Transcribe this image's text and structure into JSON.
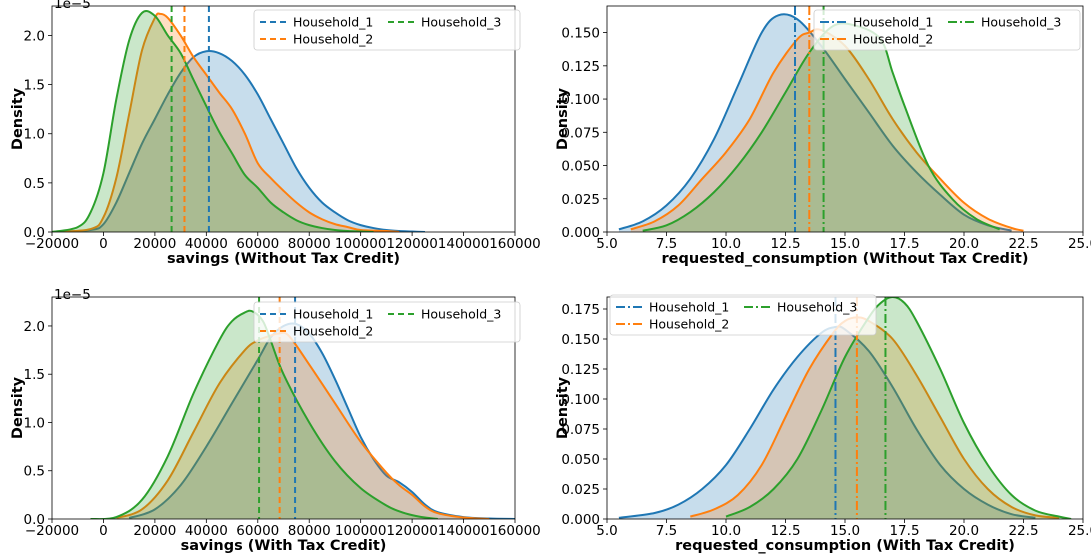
{
  "colors": {
    "Household_1": "#1f77b4",
    "Household_2": "#ff7f0e",
    "Household_3": "#2ca02c"
  },
  "chart_data": [
    {
      "type": "area",
      "xlabel": "savings (Without Tax Credit)",
      "ylabel": "Density",
      "y_offset_text": "1e−5",
      "xlim": [
        -20000,
        160000
      ],
      "ylim": [
        0,
        2.3
      ],
      "xticks": [
        -20000,
        0,
        20000,
        40000,
        60000,
        80000,
        100000,
        120000,
        140000,
        160000
      ],
      "xtick_labels": [
        "−20000",
        "0",
        "20000",
        "40000",
        "60000",
        "80000",
        "100000",
        "120000",
        "140000",
        "160000"
      ],
      "yticks": [
        0,
        0.5,
        1.0,
        1.5,
        2.0
      ],
      "ytick_labels": [
        "0.0",
        "0.5",
        "1.0",
        "1.5",
        "2.0"
      ],
      "legend": {
        "style": "dashed",
        "placement": "top-right",
        "ncol": 2
      },
      "series": [
        {
          "name": "Household_1",
          "mean": 41000,
          "x": [
            -20000,
            -5000,
            0,
            5000,
            10000,
            15000,
            20000,
            25000,
            30000,
            35000,
            40000,
            45000,
            50000,
            55000,
            60000,
            65000,
            70000,
            75000,
            80000,
            85000,
            90000,
            95000,
            100000,
            105000,
            110000,
            115000,
            120000,
            125000
          ],
          "y": [
            0,
            0.02,
            0.08,
            0.3,
            0.6,
            0.9,
            1.15,
            1.4,
            1.62,
            1.78,
            1.84,
            1.82,
            1.74,
            1.6,
            1.4,
            1.15,
            0.9,
            0.65,
            0.45,
            0.3,
            0.2,
            0.12,
            0.07,
            0.04,
            0.02,
            0.01,
            0.005,
            0
          ]
        },
        {
          "name": "Household_2",
          "mean": 31500,
          "x": [
            -20000,
            -5000,
            0,
            5000,
            10000,
            15000,
            20000,
            22000,
            25000,
            30000,
            35000,
            40000,
            45000,
            50000,
            55000,
            60000,
            65000,
            70000,
            75000,
            80000,
            85000,
            90000,
            95000,
            100000,
            110000,
            115000
          ],
          "y": [
            0,
            0.03,
            0.15,
            0.55,
            1.2,
            1.85,
            2.18,
            2.22,
            2.18,
            2.0,
            1.78,
            1.6,
            1.42,
            1.25,
            1.0,
            0.7,
            0.55,
            0.42,
            0.3,
            0.2,
            0.13,
            0.08,
            0.05,
            0.02,
            0.01,
            0
          ]
        },
        {
          "name": "Household_3",
          "mean": 26500,
          "x": [
            -20000,
            -10000,
            -5000,
            0,
            5000,
            10000,
            15000,
            20000,
            25000,
            30000,
            35000,
            40000,
            45000,
            50000,
            55000,
            60000,
            65000,
            70000,
            75000,
            80000,
            85000,
            90000,
            95000,
            100000,
            105000
          ],
          "y": [
            0,
            0.05,
            0.2,
            0.6,
            1.35,
            1.95,
            2.23,
            2.2,
            2.0,
            1.82,
            1.55,
            1.28,
            1.02,
            0.8,
            0.58,
            0.45,
            0.3,
            0.2,
            0.12,
            0.07,
            0.04,
            0.02,
            0.01,
            0.005,
            0
          ]
        }
      ]
    },
    {
      "type": "area",
      "xlabel": "requested_consumption (Without Tax Credit)",
      "ylabel": "Density",
      "xlim": [
        5.0,
        25.0
      ],
      "ylim": [
        0,
        0.17
      ],
      "xticks": [
        5,
        7.5,
        10,
        12.5,
        15,
        17.5,
        20,
        22.5,
        25
      ],
      "xtick_labels": [
        "5.0",
        "7.5",
        "10.0",
        "12.5",
        "15.0",
        "17.5",
        "20.0",
        "22.5",
        "25.0"
      ],
      "yticks": [
        0,
        0.025,
        0.05,
        0.075,
        0.1,
        0.125,
        0.15
      ],
      "ytick_labels": [
        "0.000",
        "0.025",
        "0.050",
        "0.075",
        "0.100",
        "0.125",
        "0.150"
      ],
      "legend": {
        "style": "dashdot",
        "placement": "top-right",
        "ncol": 2
      },
      "series": [
        {
          "name": "Household_1",
          "mean": 12.9,
          "x": [
            5.5,
            6.5,
            7.5,
            8.5,
            9.5,
            10.5,
            11.5,
            12.2,
            13.0,
            14.0,
            15.0,
            16.0,
            17.0,
            18.0,
            19.0,
            20.0,
            21.0,
            22.0
          ],
          "y": [
            0.002,
            0.008,
            0.02,
            0.04,
            0.07,
            0.11,
            0.15,
            0.163,
            0.16,
            0.14,
            0.115,
            0.09,
            0.065,
            0.045,
            0.028,
            0.013,
            0.005,
            0.001
          ]
        },
        {
          "name": "Household_2",
          "mean": 13.5,
          "x": [
            6.0,
            7.0,
            8.0,
            9.0,
            10.0,
            11.0,
            12.0,
            13.0,
            13.5,
            14.0,
            15.0,
            16.0,
            17.0,
            18.0,
            19.0,
            20.0,
            21.0,
            22.0,
            22.5
          ],
          "y": [
            0.002,
            0.008,
            0.02,
            0.04,
            0.06,
            0.085,
            0.12,
            0.145,
            0.15,
            0.152,
            0.14,
            0.115,
            0.085,
            0.06,
            0.04,
            0.022,
            0.01,
            0.003,
            0.001
          ]
        },
        {
          "name": "Household_3",
          "mean": 14.1,
          "x": [
            6.5,
            7.5,
            8.5,
            9.5,
            10.5,
            11.5,
            12.5,
            13.5,
            14.5,
            15.5,
            16.5,
            17.0,
            17.5,
            18.5,
            19.5,
            20.5,
            21.5
          ],
          "y": [
            0.001,
            0.005,
            0.015,
            0.03,
            0.05,
            0.075,
            0.105,
            0.135,
            0.155,
            0.155,
            0.145,
            0.12,
            0.095,
            0.05,
            0.025,
            0.01,
            0.002
          ]
        }
      ]
    },
    {
      "type": "area",
      "xlabel": "savings (With Tax Credit)",
      "ylabel": "Density",
      "y_offset_text": "1e−5",
      "xlim": [
        -20000,
        160000
      ],
      "ylim": [
        0,
        2.3
      ],
      "xticks": [
        -20000,
        0,
        20000,
        40000,
        60000,
        80000,
        100000,
        120000,
        140000,
        160000
      ],
      "xtick_labels": [
        "−20000",
        "0",
        "20000",
        "40000",
        "60000",
        "80000",
        "100000",
        "120000",
        "140000",
        "160000"
      ],
      "yticks": [
        0,
        0.5,
        1.0,
        1.5,
        2.0
      ],
      "ytick_labels": [
        "0.0",
        "0.5",
        "1.0",
        "1.5",
        "2.0"
      ],
      "legend": {
        "style": "dashed",
        "placement": "top-right",
        "ncol": 2
      },
      "series": [
        {
          "name": "Household_1",
          "mean": 74500,
          "x": [
            10000,
            20000,
            30000,
            40000,
            50000,
            60000,
            65000,
            70000,
            75000,
            80000,
            85000,
            90000,
            95000,
            100000,
            105000,
            110000,
            115000,
            120000,
            125000,
            130000,
            140000,
            150000,
            160000
          ],
          "y": [
            0.01,
            0.1,
            0.35,
            0.75,
            1.2,
            1.65,
            1.88,
            2.0,
            2.02,
            1.92,
            1.72,
            1.45,
            1.15,
            0.85,
            0.62,
            0.45,
            0.38,
            0.28,
            0.15,
            0.07,
            0.02,
            0.005,
            0
          ]
        },
        {
          "name": "Household_2",
          "mean": 68500,
          "x": [
            5000,
            15000,
            25000,
            35000,
            45000,
            55000,
            60000,
            65000,
            68000,
            72000,
            80000,
            90000,
            100000,
            110000,
            115000,
            120000,
            125000,
            130000,
            140000,
            150000
          ],
          "y": [
            0.01,
            0.1,
            0.4,
            0.9,
            1.4,
            1.75,
            1.85,
            1.9,
            1.92,
            1.9,
            1.6,
            1.2,
            0.8,
            0.48,
            0.35,
            0.25,
            0.13,
            0.06,
            0.015,
            0
          ]
        },
        {
          "name": "Household_3",
          "mean": 60500,
          "x": [
            -5000,
            5000,
            15000,
            25000,
            35000,
            45000,
            50000,
            55000,
            58000,
            62000,
            65000,
            70000,
            80000,
            90000,
            100000,
            110000,
            115000,
            120000,
            125000,
            130000
          ],
          "y": [
            0,
            0.02,
            0.2,
            0.65,
            1.3,
            1.85,
            2.05,
            2.14,
            2.15,
            2.05,
            1.85,
            1.5,
            1.0,
            0.6,
            0.32,
            0.14,
            0.08,
            0.04,
            0.015,
            0
          ]
        }
      ]
    },
    {
      "type": "area",
      "xlabel": "requested_consumption (With Tax Credit)",
      "ylabel": "Density",
      "xlim": [
        5.0,
        25.0
      ],
      "ylim": [
        0,
        0.185
      ],
      "xticks": [
        5,
        7.5,
        10,
        12.5,
        15,
        17.5,
        20,
        22.5,
        25
      ],
      "xtick_labels": [
        "5.0",
        "7.5",
        "10.0",
        "12.5",
        "15.0",
        "17.5",
        "20.0",
        "22.5",
        "25.0"
      ],
      "yticks": [
        0,
        0.025,
        0.05,
        0.075,
        0.1,
        0.125,
        0.15,
        0.175
      ],
      "ytick_labels": [
        "0.000",
        "0.025",
        "0.050",
        "0.075",
        "0.100",
        "0.125",
        "0.150",
        "0.175"
      ],
      "legend": {
        "style": "dashdot",
        "placement": "top-left",
        "ncol": 2
      },
      "series": [
        {
          "name": "Household_1",
          "mean": 14.6,
          "x": [
            5.5,
            7.0,
            8.0,
            9.0,
            10.0,
            11.0,
            12.0,
            13.0,
            14.0,
            14.6,
            15.0,
            16.0,
            17.0,
            18.0,
            19.0,
            20.0,
            21.0,
            22.0,
            23.0
          ],
          "y": [
            0.001,
            0.005,
            0.012,
            0.025,
            0.045,
            0.075,
            0.108,
            0.135,
            0.155,
            0.16,
            0.158,
            0.14,
            0.11,
            0.075,
            0.045,
            0.025,
            0.012,
            0.004,
            0.001
          ]
        },
        {
          "name": "Household_2",
          "mean": 15.5,
          "x": [
            8.5,
            9.5,
            10.5,
            11.5,
            12.5,
            13.5,
            14.5,
            15.0,
            15.5,
            16.0,
            17.0,
            18.0,
            19.0,
            20.0,
            21.0,
            22.0,
            23.0,
            24.0
          ],
          "y": [
            0.002,
            0.008,
            0.02,
            0.045,
            0.085,
            0.125,
            0.155,
            0.165,
            0.168,
            0.165,
            0.15,
            0.12,
            0.085,
            0.05,
            0.025,
            0.01,
            0.003,
            0.001
          ]
        },
        {
          "name": "Household_3",
          "mean": 16.7,
          "x": [
            10.0,
            11.0,
            12.0,
            13.0,
            14.0,
            15.0,
            16.0,
            16.5,
            17.0,
            17.5,
            18.0,
            19.0,
            20.0,
            21.0,
            22.0,
            23.0,
            24.0,
            24.5
          ],
          "y": [
            0.002,
            0.01,
            0.025,
            0.05,
            0.09,
            0.135,
            0.168,
            0.18,
            0.185,
            0.18,
            0.165,
            0.125,
            0.08,
            0.045,
            0.02,
            0.007,
            0.002,
            0
          ]
        }
      ]
    }
  ]
}
